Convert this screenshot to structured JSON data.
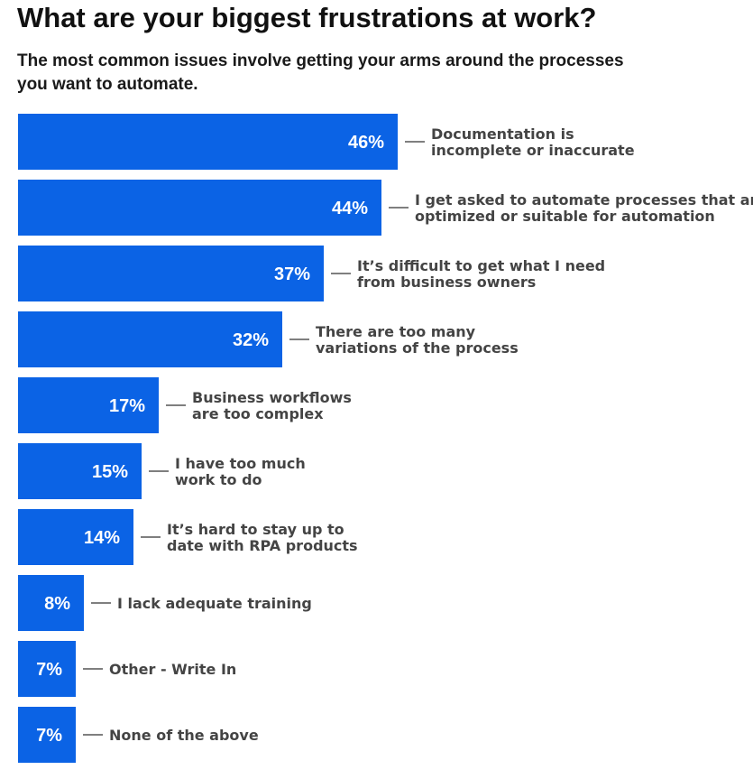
{
  "chart_data": {
    "type": "bar",
    "orientation": "horizontal",
    "title": "What are your biggest frustrations at work?",
    "subtitle": "The most common issues involve getting your arms around the processes you want to automate.",
    "unit": "%",
    "bar_color": "#0b63e5",
    "categories": [
      [
        "Documentation is",
        "incomplete or inaccurate"
      ],
      [
        "I get asked to automate processes that aren’t",
        "optimized or suitable for automation"
      ],
      [
        "It’s difficult to get what I need",
        "from business owners"
      ],
      [
        "There are too many",
        "variations of the process"
      ],
      [
        "Business workflows",
        "are too complex"
      ],
      [
        "I have too much",
        "work to do"
      ],
      [
        "It’s hard to stay up to",
        "date with RPA products"
      ],
      [
        "I lack adequate training"
      ],
      [
        "Other - Write In"
      ],
      [
        "None of the above"
      ]
    ],
    "values": [
      46,
      44,
      37,
      32,
      17,
      15,
      14,
      8,
      7,
      7
    ],
    "value_labels": [
      "46%",
      "44%",
      "37%",
      "32%",
      "17%",
      "15%",
      "14%",
      "8%",
      "7%",
      "7%"
    ]
  }
}
